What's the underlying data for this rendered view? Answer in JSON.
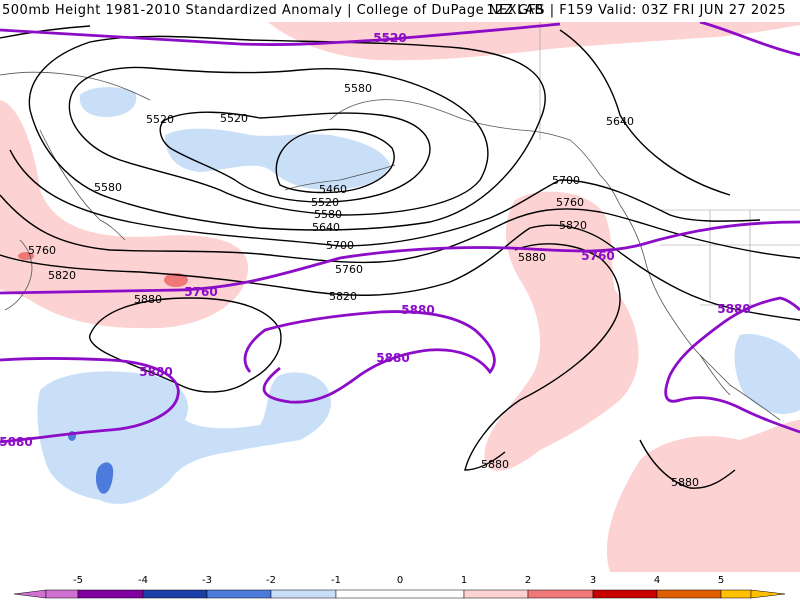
{
  "header": {
    "title": "500mb Height 1981-2010 Standardized Anomaly | College of DuPage NEXLAB",
    "run_info": "12Z GFS | F159 Valid: 03Z FRI JUN 27 2025"
  },
  "colors": {
    "neg5": "#d070d0",
    "neg4": "#8000a0",
    "neg3": "#1a3fa8",
    "neg2": "#4d7bdc",
    "neg1": "#c9dff8",
    "zero": "#ffffff",
    "pos1": "#fcd2d2",
    "pos2": "#f07878",
    "pos3": "#c80000",
    "pos4": "#e06000",
    "pos5": "#ffc000",
    "contour": "#000000",
    "purple_contour": "#8c0cc8"
  },
  "legend": {
    "ticks": [
      "-5",
      "-4",
      "-3",
      "-2",
      "-1",
      "0",
      "1",
      "2",
      "3",
      "4",
      "5"
    ]
  },
  "contour_labels": {
    "black": [
      "5580",
      "5520",
      "5520",
      "5580",
      "5460",
      "5520",
      "5580",
      "5640",
      "5700",
      "5760",
      "5820",
      "5880",
      "5760",
      "5820",
      "5700",
      "5760",
      "5820",
      "5880",
      "5640",
      "5880",
      "5880"
    ],
    "purple": [
      "5520",
      "5760",
      "5760",
      "5880",
      "5880",
      "5880",
      "5880",
      "5880"
    ]
  }
}
